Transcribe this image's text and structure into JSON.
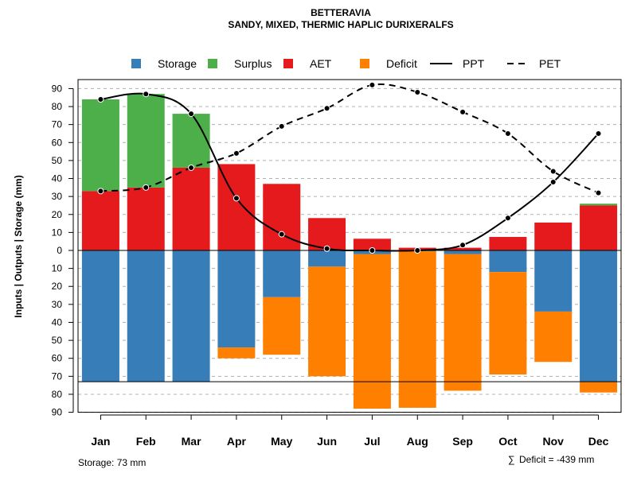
{
  "chart_data": {
    "type": "bar",
    "title": "BETTERAVIA",
    "subtitle": "SANDY, MIXED, THERMIC HAPLIC DURIXERALFS",
    "ylabel": "Inputs | Outputs | Storage     (mm)",
    "ylim": [
      -90,
      95
    ],
    "yticks": [
      90,
      80,
      70,
      60,
      50,
      40,
      30,
      20,
      10,
      0,
      -10,
      -20,
      -30,
      -40,
      -50,
      -60,
      -70,
      -80,
      -90
    ],
    "ytick_labels": [
      "90",
      "80",
      "70",
      "60",
      "50",
      "40",
      "30",
      "20",
      "10",
      "0",
      "10",
      "20",
      "30",
      "40",
      "50",
      "60",
      "70",
      "80",
      "90"
    ],
    "categories": [
      "Jan",
      "Feb",
      "Mar",
      "Apr",
      "May",
      "Jun",
      "Jul",
      "Aug",
      "Sep",
      "Oct",
      "Nov",
      "Dec"
    ],
    "legend": [
      {
        "name": "Storage",
        "color": "#377EB8",
        "kind": "box"
      },
      {
        "name": "Surplus",
        "color": "#4DAF4A",
        "kind": "box"
      },
      {
        "name": "AET",
        "color": "#E41A1C",
        "kind": "box"
      },
      {
        "name": "Deficit",
        "color": "#FF7F00",
        "kind": "box"
      },
      {
        "name": "PPT",
        "color": "#000000",
        "kind": "solid"
      },
      {
        "name": "PET",
        "color": "#000000",
        "kind": "dashed"
      }
    ],
    "series": [
      {
        "name": "AET",
        "color": "#E41A1C",
        "values": [
          33,
          35,
          46,
          48,
          37,
          18,
          6.5,
          1.5,
          1.5,
          7.5,
          15.5,
          25
        ]
      },
      {
        "name": "Surplus",
        "color": "#4DAF4A",
        "values": [
          51,
          52,
          30,
          0,
          0,
          0,
          0,
          0,
          0,
          0,
          0,
          1
        ]
      },
      {
        "name": "Storage",
        "color": "#377EB8",
        "values": [
          73,
          73,
          73,
          54,
          26,
          9,
          2,
          0.5,
          2,
          12,
          34,
          73
        ]
      },
      {
        "name": "Deficit",
        "color": "#FF7F00",
        "values": [
          0,
          0,
          0,
          6,
          32,
          61,
          86,
          87,
          76,
          57,
          28,
          6
        ]
      },
      {
        "name": "PPT",
        "color": "#000000",
        "values": [
          84,
          87,
          76,
          29,
          9,
          1,
          0,
          0,
          3,
          18,
          38,
          65
        ]
      },
      {
        "name": "PET",
        "color": "#000000",
        "values": [
          33,
          35,
          46,
          54,
          69,
          79,
          92,
          88,
          77,
          65,
          44,
          32
        ]
      }
    ],
    "storage_capacity": 73,
    "storage_label": "Storage: 73 mm",
    "deficit_label": "Deficit = -439 mm",
    "sum_symbol": "∑"
  }
}
